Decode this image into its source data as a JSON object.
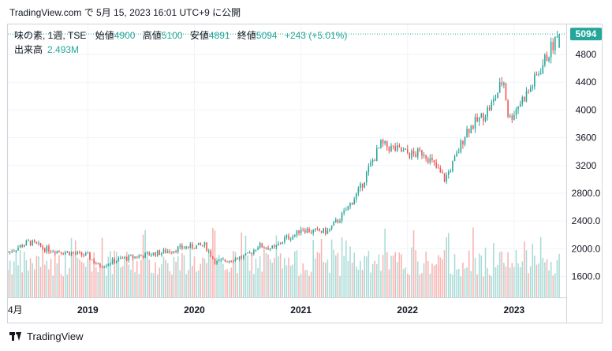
{
  "header": {
    "timestamp": "TradingView.com で 5月 15, 2023 16:01 UTC+9 に公開"
  },
  "legend": {
    "symbol": "味の素, 1週, TSE",
    "open_label": "始値",
    "open": "4900",
    "high_label": "高値",
    "high": "5100",
    "low_label": "安値",
    "low": "4891",
    "close_label": "終値",
    "close": "5094",
    "change": "+243 (+5.01%)"
  },
  "volume_legend": {
    "label": "出来高",
    "value": "2.493M"
  },
  "currency": "JPY",
  "last_price_label": "5094",
  "footer": {
    "brand": "TradingView"
  },
  "colors": {
    "up": "#26a69a",
    "down": "#ef5350",
    "up_volume": "#a8dbd6",
    "down_volume": "#f7b4b2",
    "text": "#131722",
    "grid": "#f0f3fa"
  },
  "icons": {
    "logo": "tradingview-logo-icon"
  },
  "chart_data": {
    "type": "candlestick",
    "title": "味の素, 1週, TSE",
    "currency": "JPY",
    "ylim": [
      1300,
      5300
    ],
    "y_ticks": [
      "1600.0",
      "2000.0",
      "2400.0",
      "2800.0",
      "3200",
      "3600",
      "4000",
      "4400",
      "4800"
    ],
    "y_tick_values": [
      1600,
      2000,
      2400,
      2800,
      3200,
      3600,
      4000,
      4400,
      4800
    ],
    "x_ticks": [
      "4月",
      "2019",
      "2020",
      "2021",
      "2022",
      "2023"
    ],
    "x_tick_times": [
      2018.25,
      2019.0,
      2020.0,
      2021.0,
      2022.0,
      2023.0
    ],
    "xlim": [
      2018.25,
      2023.43
    ],
    "last": {
      "open": 4900,
      "high": 5100,
      "low": 4891,
      "close": 5094,
      "change": 243,
      "change_pct": 5.01,
      "volume": "2.493M"
    },
    "approx_weekly_close_path": [
      [
        2018.25,
        1950
      ],
      [
        2018.45,
        2100
      ],
      [
        2018.6,
        2000
      ],
      [
        2018.8,
        1950
      ],
      [
        2019.0,
        1900
      ],
      [
        2019.1,
        1750
      ],
      [
        2019.3,
        1850
      ],
      [
        2019.5,
        1900
      ],
      [
        2019.7,
        1950
      ],
      [
        2019.9,
        2020
      ],
      [
        2020.1,
        2050
      ],
      [
        2020.2,
        1800
      ],
      [
        2020.35,
        1850
      ],
      [
        2020.5,
        1900
      ],
      [
        2020.6,
        2050
      ],
      [
        2020.75,
        2000
      ],
      [
        2020.85,
        2150
      ],
      [
        2020.95,
        2200
      ],
      [
        2021.0,
        2300
      ],
      [
        2021.1,
        2250
      ],
      [
        2021.25,
        2250
      ],
      [
        2021.4,
        2500
      ],
      [
        2021.55,
        2850
      ],
      [
        2021.65,
        3200
      ],
      [
        2021.75,
        3500
      ],
      [
        2021.85,
        3450
      ],
      [
        2021.95,
        3400
      ],
      [
        2022.05,
        3350
      ],
      [
        2022.15,
        3400
      ],
      [
        2022.25,
        3200
      ],
      [
        2022.35,
        3000
      ],
      [
        2022.45,
        3300
      ],
      [
        2022.55,
        3700
      ],
      [
        2022.7,
        3900
      ],
      [
        2022.8,
        4100
      ],
      [
        2022.9,
        4450
      ],
      [
        2022.95,
        3850
      ],
      [
        2023.05,
        4100
      ],
      [
        2023.15,
        4300
      ],
      [
        2023.25,
        4600
      ],
      [
        2023.35,
        4900
      ],
      [
        2023.43,
        5094
      ]
    ]
  }
}
